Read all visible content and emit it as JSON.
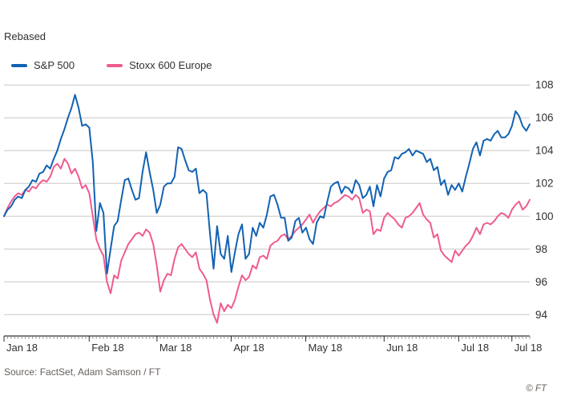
{
  "footer": {
    "source": "Source: FactSet, Adam Samson / FT",
    "copyright": "© FT"
  },
  "chart_data": {
    "type": "line",
    "title": "",
    "subtitle": "Rebased",
    "xlabel": "",
    "ylabel": "",
    "ylim": [
      92.7,
      108.3
    ],
    "yticks": [
      94,
      96,
      98,
      100,
      102,
      104,
      106,
      108
    ],
    "yticks_side": "right",
    "grid": "horizontal",
    "legend_position": "top-left",
    "colors": {
      "background": "#ffffff",
      "grid": "#ccc7c2",
      "axis": "#33302e",
      "tick": "#8f8a86",
      "text": "#33302e",
      "secondary_text": "#66605c"
    },
    "xticks": [
      {
        "label": "Jan 18",
        "pos": 0.0
      },
      {
        "label": "Feb 18",
        "pos": 0.162
      },
      {
        "label": "Mar 18",
        "pos": 0.291
      },
      {
        "label": "Apr 18",
        "pos": 0.432
      },
      {
        "label": "May 18",
        "pos": 0.574
      },
      {
        "label": "Jun 18",
        "pos": 0.723
      },
      {
        "label": "Jul 18",
        "pos": 0.865
      },
      {
        "label": "Jul 18",
        "pos": 0.966
      }
    ],
    "series": [
      {
        "id": "sp500",
        "name": "S&P 500",
        "color": "#1262b3",
        "values": [
          100.0,
          100.4,
          100.6,
          101.0,
          101.2,
          101.1,
          101.6,
          101.8,
          102.2,
          102.1,
          102.6,
          102.7,
          103.1,
          102.9,
          103.5,
          104.0,
          104.7,
          105.3,
          106.0,
          106.6,
          107.4,
          106.6,
          105.5,
          105.6,
          105.4,
          103.3,
          99.1,
          100.8,
          100.2,
          96.5,
          98.0,
          99.4,
          99.7,
          101.0,
          102.2,
          102.3,
          101.6,
          101.0,
          101.1,
          102.7,
          103.9,
          102.7,
          101.6,
          100.2,
          100.7,
          101.8,
          102.0,
          102.0,
          102.4,
          104.2,
          104.1,
          103.4,
          102.8,
          102.7,
          102.9,
          101.4,
          101.6,
          101.4,
          98.9,
          96.8,
          99.4,
          97.7,
          97.4,
          98.8,
          96.6,
          97.8,
          98.9,
          99.5,
          97.4,
          97.7,
          99.3,
          98.8,
          99.6,
          99.3,
          100.1,
          101.2,
          101.3,
          100.7,
          99.9,
          99.9,
          98.5,
          98.7,
          99.7,
          99.9,
          99.0,
          99.3,
          98.6,
          98.3,
          99.6,
          100.0,
          99.9,
          100.9,
          101.8,
          102.0,
          102.1,
          101.4,
          101.8,
          101.7,
          101.4,
          102.2,
          101.9,
          101.1,
          101.3,
          101.8,
          100.6,
          101.9,
          101.2,
          102.3,
          102.7,
          102.8,
          103.6,
          103.5,
          103.8,
          103.9,
          104.1,
          103.7,
          104.0,
          103.9,
          103.8,
          103.3,
          103.5,
          102.8,
          103.0,
          101.9,
          102.2,
          101.3,
          101.9,
          101.6,
          102.0,
          101.5,
          102.4,
          103.2,
          104.1,
          104.5,
          103.7,
          104.6,
          104.7,
          104.6,
          105.0,
          105.2,
          104.8,
          104.8,
          105.0,
          105.5,
          106.4,
          106.1,
          105.5,
          105.2,
          105.6
        ]
      },
      {
        "id": "stoxx600",
        "name": "Stoxx 600 Europe",
        "color": "#ef5b8f",
        "values": [
          100.0,
          100.5,
          100.9,
          101.2,
          101.4,
          101.3,
          101.6,
          101.5,
          101.8,
          101.7,
          102.0,
          102.2,
          102.1,
          102.4,
          103.0,
          103.2,
          102.9,
          103.5,
          103.2,
          102.6,
          102.9,
          102.4,
          101.7,
          101.9,
          101.4,
          100.0,
          98.6,
          98.0,
          97.6,
          96.0,
          95.3,
          96.4,
          96.2,
          97.3,
          97.8,
          98.3,
          98.6,
          98.9,
          99.0,
          98.8,
          99.2,
          99.0,
          98.3,
          97.0,
          95.4,
          96.1,
          96.5,
          96.4,
          97.4,
          98.1,
          98.3,
          98.0,
          97.7,
          97.5,
          97.8,
          96.8,
          96.5,
          96.1,
          94.9,
          94.0,
          93.5,
          94.7,
          94.2,
          94.6,
          94.4,
          94.9,
          95.7,
          96.4,
          96.1,
          96.3,
          97.0,
          96.8,
          97.5,
          97.6,
          97.4,
          98.2,
          98.4,
          98.5,
          98.8,
          98.9,
          98.6,
          98.8,
          99.1,
          99.3,
          99.5,
          99.8,
          100.1,
          99.6,
          100.0,
          100.3,
          100.5,
          100.7,
          100.6,
          100.8,
          100.9,
          101.1,
          101.3,
          101.2,
          101.0,
          101.3,
          101.1,
          100.2,
          100.4,
          100.3,
          98.9,
          99.2,
          99.1,
          99.9,
          100.2,
          100.0,
          99.8,
          99.5,
          99.3,
          99.9,
          100.0,
          100.2,
          100.5,
          100.8,
          100.1,
          99.8,
          99.6,
          98.7,
          98.9,
          97.9,
          97.6,
          97.4,
          97.2,
          97.9,
          97.6,
          97.9,
          98.2,
          98.4,
          98.8,
          99.3,
          98.9,
          99.5,
          99.6,
          99.5,
          99.7,
          100.0,
          100.2,
          100.1,
          99.9,
          100.4,
          100.7,
          100.9,
          100.4,
          100.6,
          101.0
        ]
      }
    ]
  }
}
